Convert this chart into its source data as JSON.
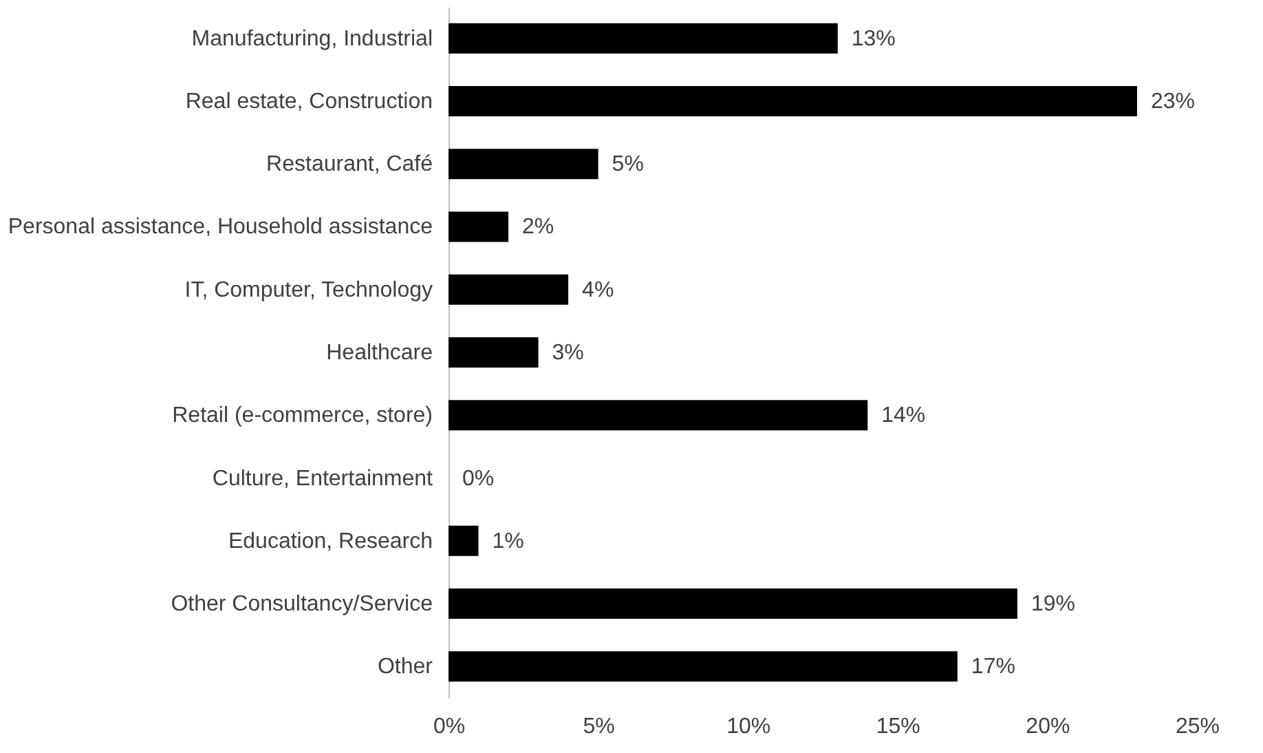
{
  "chart_data": {
    "type": "bar",
    "orientation": "horizontal",
    "categories": [
      "Manufacturing, Industrial",
      "Real estate, Construction",
      "Restaurant, Café",
      "Personal assistance, Household assistance",
      "IT, Computer, Technology",
      "Healthcare",
      "Retail (e-commerce, store)",
      "Culture, Entertainment",
      "Education, Research",
      "Other Consultancy/Service",
      "Other"
    ],
    "values": [
      13,
      23,
      5,
      2,
      4,
      3,
      14,
      0,
      1,
      19,
      17
    ],
    "value_labels": [
      "13%",
      "23%",
      "5%",
      "2%",
      "4%",
      "3%",
      "14%",
      "0%",
      "1%",
      "19%",
      "17%"
    ],
    "color": "#000000",
    "xlim": [
      0,
      25
    ],
    "xticks": [
      {
        "value": 0,
        "label": "0%"
      },
      {
        "value": 5,
        "label": "5%"
      },
      {
        "value": 10,
        "label": "10%"
      },
      {
        "value": 15,
        "label": "15%"
      },
      {
        "value": 20,
        "label": "20%"
      },
      {
        "value": 25,
        "label": "25%"
      }
    ],
    "grid": false
  }
}
